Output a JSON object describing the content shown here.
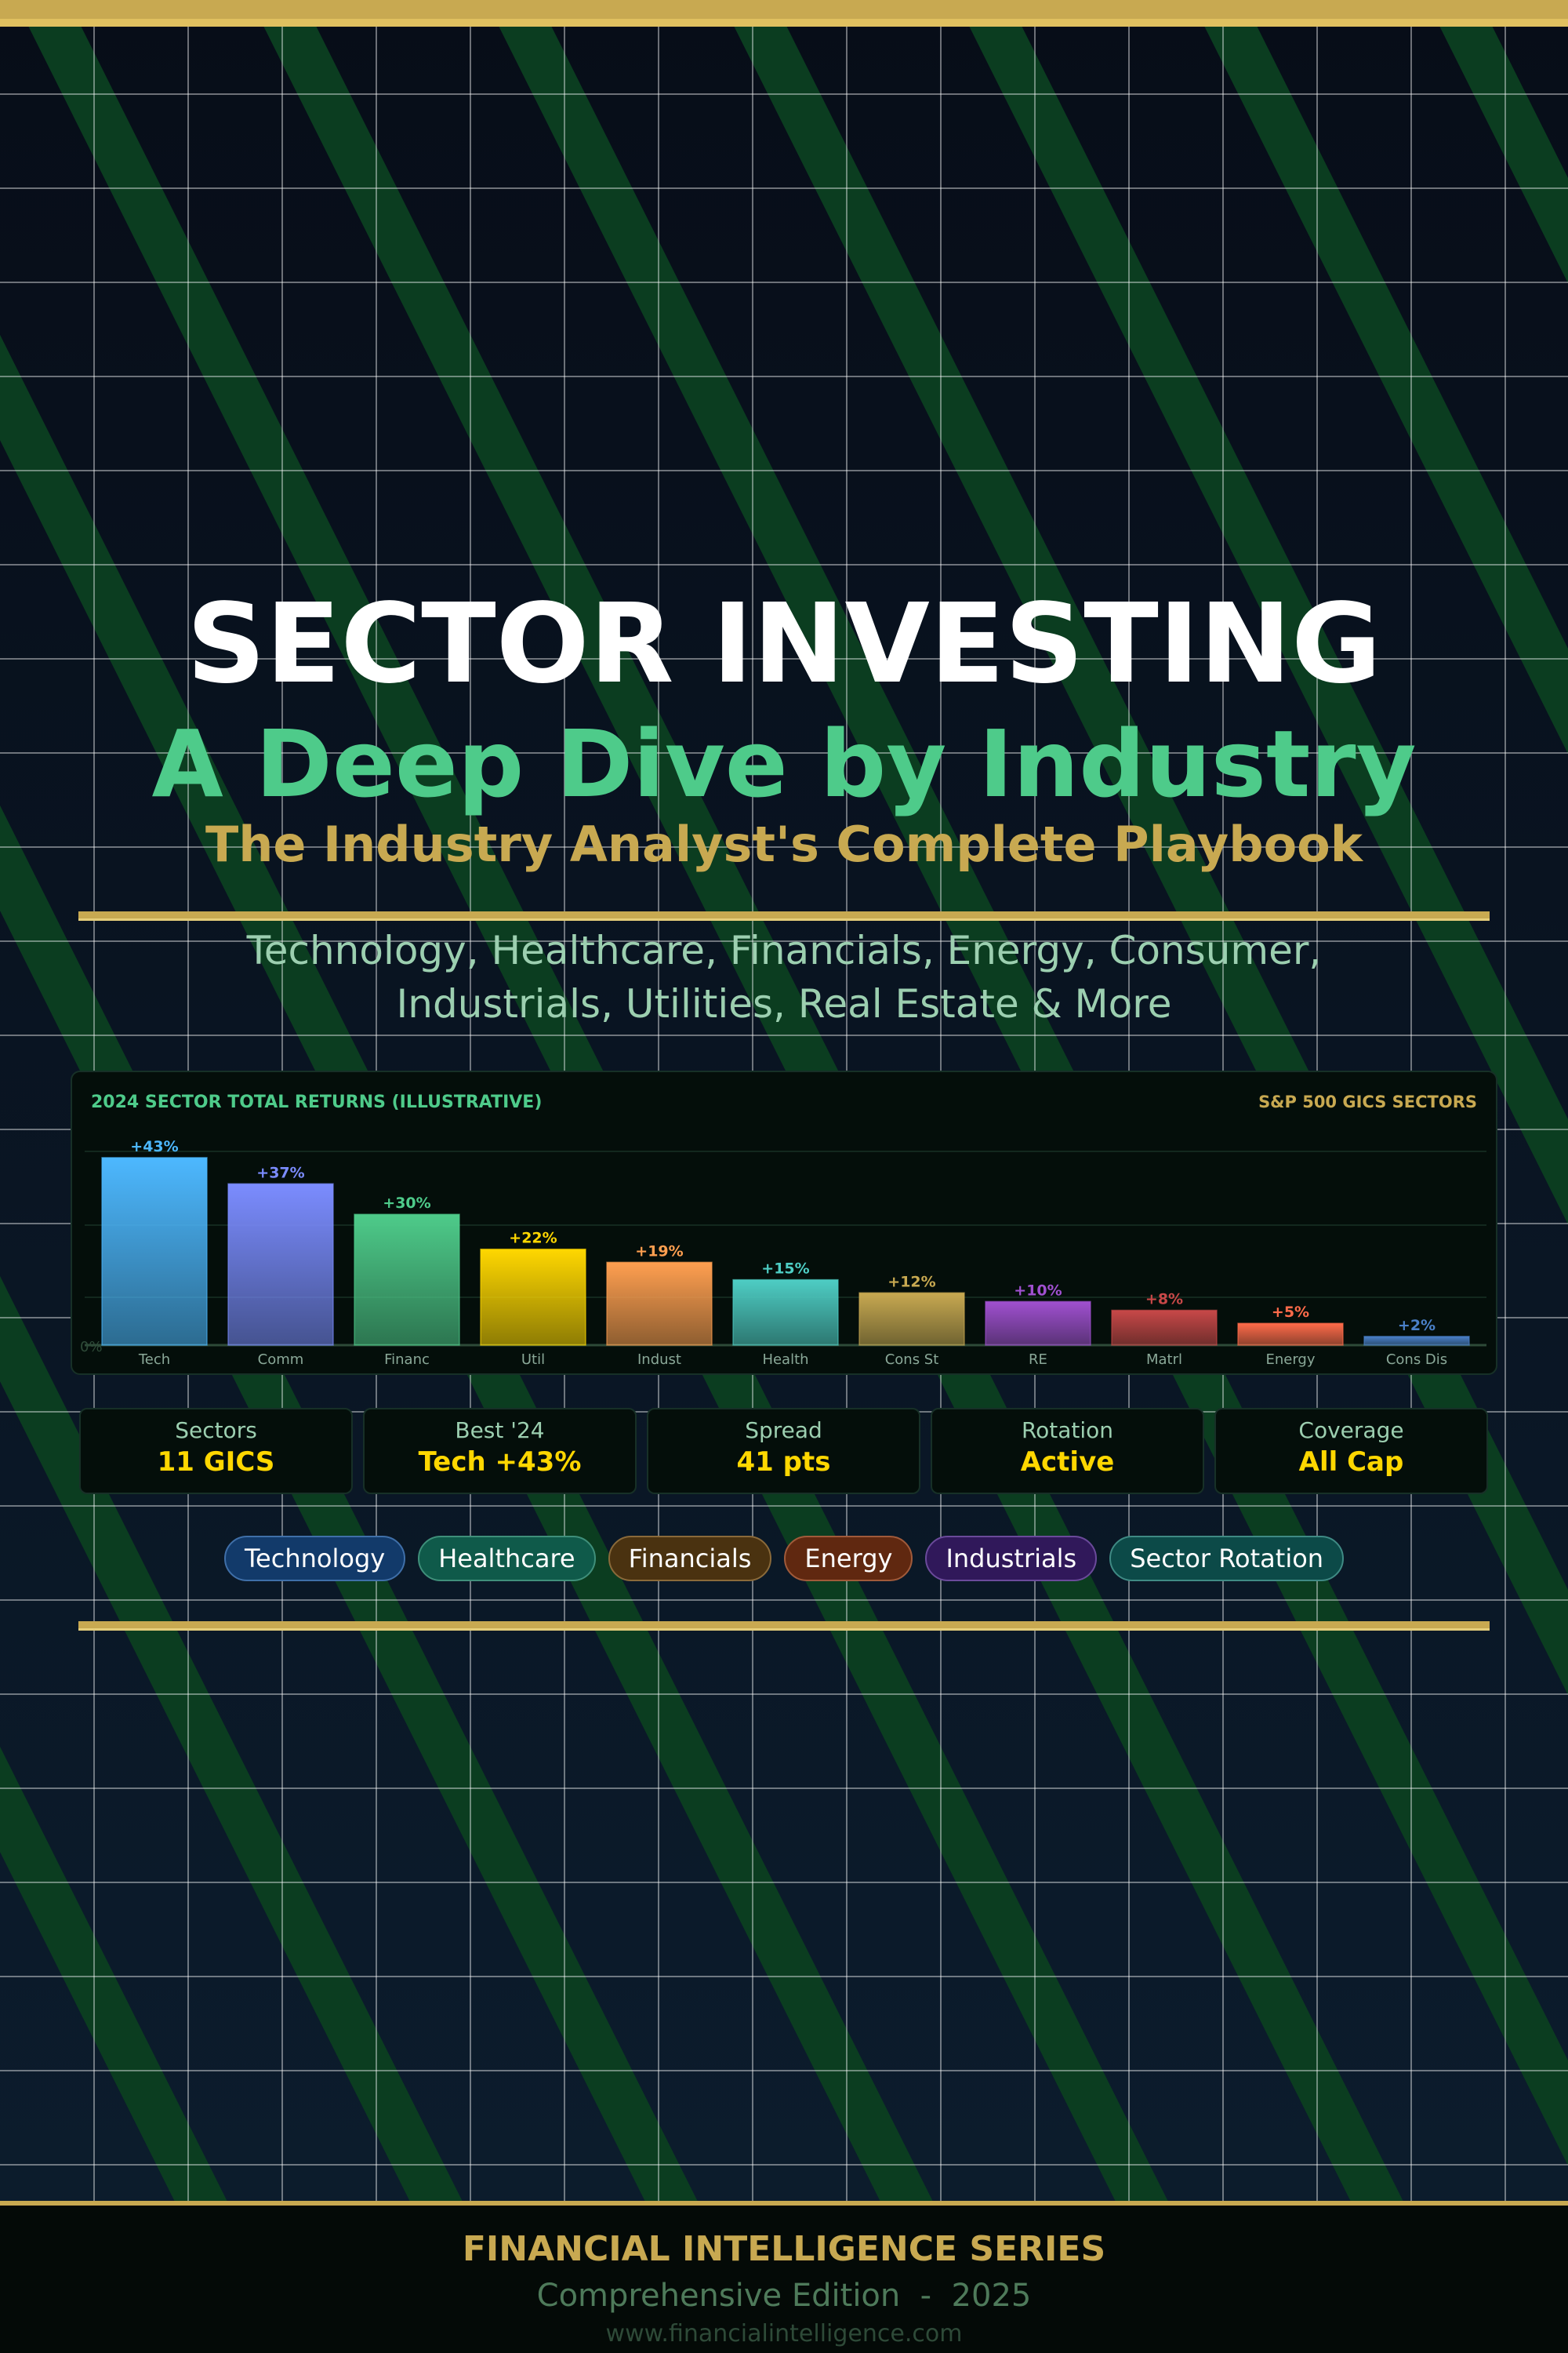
{
  "title": "SECTOR INVESTING",
  "subtitle": "A Deep Dive by Industry",
  "tagline": "The Industry Analyst's Complete Playbook",
  "description": [
    "Technology, Healthcare, Financials, Energy, Consumer,",
    "Industrials, Utilities, Real Estate & More"
  ],
  "colors": {
    "gold": "#c8a951",
    "green": "#4ecb8a",
    "stripe": "#0b3d20",
    "value": "#ffd700"
  },
  "chart_data": {
    "type": "bar",
    "title": "2024 SECTOR TOTAL RETURNS (ILLUSTRATIVE)",
    "right_label": "S&P 500 GICS SECTORS",
    "zero_label": "0%",
    "categories": [
      "Tech",
      "Comm",
      "Financ",
      "Util",
      "Indust",
      "Health",
      "Cons St",
      "RE",
      "Matrl",
      "Energy",
      "Cons Dis"
    ],
    "values": [
      43,
      37,
      30,
      22,
      19,
      15,
      12,
      10,
      8,
      5,
      2
    ],
    "labels": [
      "+43%",
      "+37%",
      "+30%",
      "+22%",
      "+19%",
      "+15%",
      "+12%",
      "+10%",
      "+8%",
      "+5%",
      "+2%"
    ],
    "colors": [
      "#4db8ff",
      "#7b8cff",
      "#4ecb8a",
      "#ffd700",
      "#ff9f50",
      "#4ecdc4",
      "#c8a951",
      "#a050d0",
      "#c84848",
      "#ff6b4a",
      "#4a80c8"
    ],
    "ylim": [
      0,
      50
    ],
    "grid": true
  },
  "stats": [
    {
      "label": "Sectors",
      "value": "11 GICS"
    },
    {
      "label": "Best '24",
      "value": "Tech +43%"
    },
    {
      "label": "Spread",
      "value": "41 pts"
    },
    {
      "label": "Rotation",
      "value": "Active"
    },
    {
      "label": "Coverage",
      "value": "All Cap"
    }
  ],
  "pills": [
    {
      "label": "Technology",
      "bg": "#123a6a",
      "border": "#3f6fa8"
    },
    {
      "label": "Healthcare",
      "bg": "#0f5a4a",
      "border": "#3f8f7a"
    },
    {
      "label": "Financials",
      "bg": "#4a3210",
      "border": "#8a6a3a"
    },
    {
      "label": "Energy",
      "bg": "#602810",
      "border": "#a05a3a"
    },
    {
      "label": "Industrials",
      "bg": "#30185a",
      "border": "#6a4a9a"
    },
    {
      "label": "Sector Rotation",
      "bg": "#0c4a48",
      "border": "#3f8a84"
    }
  ],
  "footer": {
    "series": "FINANCIAL INTELLIGENCE SERIES",
    "edition": "Comprehensive Edition  -  2025",
    "url": "www.financialintelligence.com"
  }
}
